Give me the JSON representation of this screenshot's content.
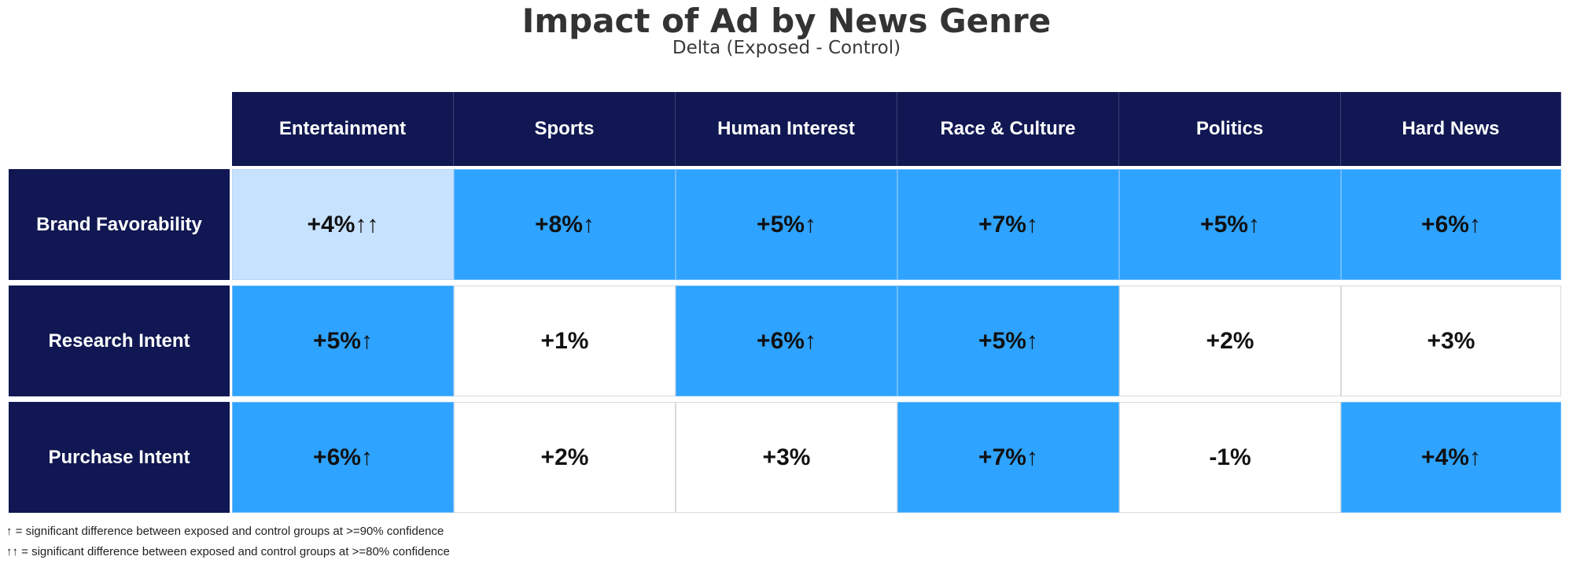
{
  "chart_data": {
    "type": "table",
    "title": "Impact of Ad by News Genre",
    "subtitle": "Delta (Exposed - Control)",
    "columns": [
      "Entertainment",
      "Sports",
      "Human Interest",
      "Race & Culture",
      "Politics",
      "Hard News"
    ],
    "rows": [
      {
        "label": "Brand Favorability",
        "cells": [
          {
            "text": "+4%↑↑",
            "value": 4,
            "sig": "80"
          },
          {
            "text": "+8%↑",
            "value": 8,
            "sig": "90"
          },
          {
            "text": "+5%↑",
            "value": 5,
            "sig": "90"
          },
          {
            "text": "+7%↑",
            "value": 7,
            "sig": "90"
          },
          {
            "text": "+5%↑",
            "value": 5,
            "sig": "90"
          },
          {
            "text": "+6%↑",
            "value": 6,
            "sig": "90"
          }
        ]
      },
      {
        "label": "Research Intent",
        "cells": [
          {
            "text": "+5%↑",
            "value": 5,
            "sig": "90"
          },
          {
            "text": "+1%",
            "value": 1,
            "sig": "none"
          },
          {
            "text": "+6%↑",
            "value": 6,
            "sig": "90"
          },
          {
            "text": "+5%↑",
            "value": 5,
            "sig": "90"
          },
          {
            "text": "+2%",
            "value": 2,
            "sig": "none"
          },
          {
            "text": "+3%",
            "value": 3,
            "sig": "none"
          }
        ]
      },
      {
        "label": "Purchase Intent",
        "cells": [
          {
            "text": "+6%↑",
            "value": 6,
            "sig": "90"
          },
          {
            "text": "+2%",
            "value": 2,
            "sig": "none"
          },
          {
            "text": "+3%",
            "value": 3,
            "sig": "none"
          },
          {
            "text": "+7%↑",
            "value": 7,
            "sig": "90"
          },
          {
            "text": "-1%",
            "value": -1,
            "sig": "none"
          },
          {
            "text": "+4%↑",
            "value": 4,
            "sig": "90"
          }
        ]
      }
    ],
    "footnotes": [
      "↑ = significant difference between exposed and control groups at >=90% confidence",
      "↑↑ = significant difference between exposed and control groups at >=80% confidence"
    ],
    "colors": {
      "header": "#101752",
      "sig_90": "#2ea3ff",
      "sig_80": "#c6e2ff",
      "not_sig": "#ffffff"
    }
  }
}
